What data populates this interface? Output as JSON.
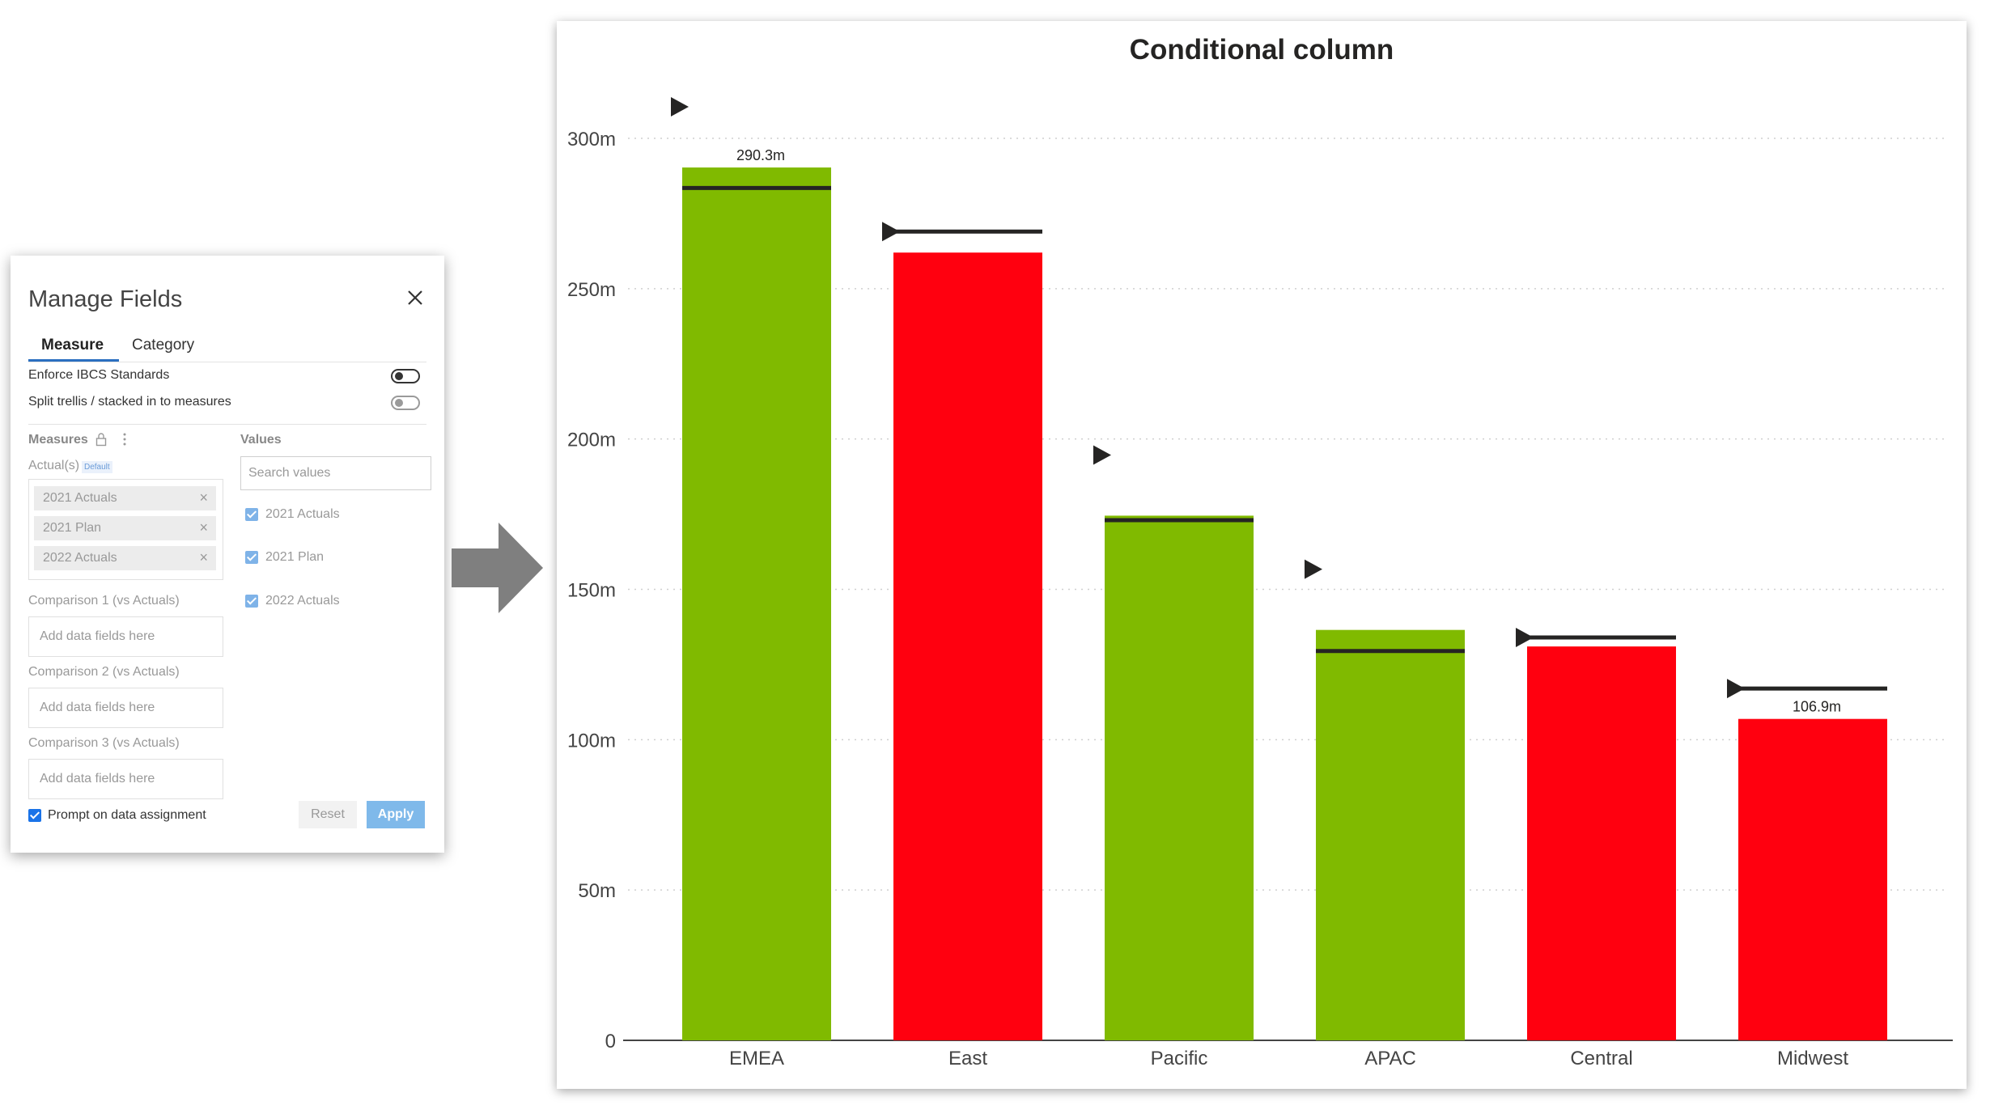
{
  "panel": {
    "title": "Manage Fields",
    "tabs": [
      "Measure",
      "Category"
    ],
    "options": [
      {
        "label": "Enforce IBCS Standards",
        "state": "on"
      },
      {
        "label": "Split trellis / stacked in to measures",
        "state": "off"
      }
    ],
    "measures_label": "Measures",
    "actuals_label": "Actual(s)",
    "default_badge": "Default",
    "actual_chips": [
      "2021 Actuals",
      "2021 Plan",
      "2022 Actuals"
    ],
    "comparisons": [
      {
        "label": "Comparison 1 (vs Actuals)",
        "placeholder": "Add data fields here"
      },
      {
        "label": "Comparison 2 (vs Actuals)",
        "placeholder": "Add data fields here"
      },
      {
        "label": "Comparison 3 (vs Actuals)",
        "placeholder": "Add data fields here"
      }
    ],
    "values_label": "Values",
    "search_placeholder": "Search values",
    "values": [
      "2021 Actuals",
      "2021 Plan",
      "2022 Actuals"
    ],
    "prompt_label": "Prompt on data assignment",
    "reset_label": "Reset",
    "apply_label": "Apply"
  },
  "colors": {
    "positive": "#80BA00",
    "negative": "#FF000F",
    "reference": "#252423",
    "arrow": "#7F7F7F",
    "accent": "#1A73E8"
  },
  "chart_data": {
    "type": "bar",
    "title": "Conditional column",
    "categories": [
      "EMEA",
      "East",
      "Pacific",
      "APAC",
      "Central",
      "Midwest"
    ],
    "series": [
      {
        "name": "Actuals",
        "values": [
          290.3,
          262.0,
          174.5,
          136.5,
          131.0,
          106.9
        ]
      },
      {
        "values": [
          283.5,
          269.0,
          173.0,
          129.5,
          134.0,
          117.0
        ]
      }
    ],
    "data_labels": {
      "0": "290.3m",
      "5": "106.9m"
    },
    "ylim": [
      0,
      300
    ],
    "yticks": [
      0,
      50,
      100,
      150,
      200,
      250,
      300
    ],
    "ytick_labels": [
      "0",
      "50m",
      "100m",
      "150m",
      "200m",
      "250m",
      "300m"
    ],
    "grid": true
  }
}
